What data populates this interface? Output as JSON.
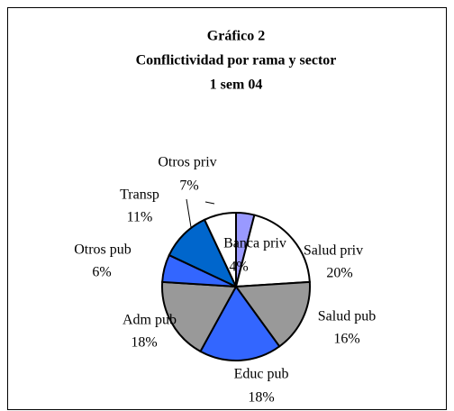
{
  "chart_data": {
    "type": "pie",
    "title": [
      "Gráfico 2",
      "Conflictividad por rama y sector",
      "1 sem 04"
    ],
    "categories": [
      "Banca priv",
      "Salud priv",
      "Salud pub",
      "Educ pub",
      "Adm pub",
      "Otros pub",
      "Transp",
      "Otros priv"
    ],
    "values": [
      4,
      20,
      16,
      18,
      18,
      6,
      11,
      7
    ],
    "value_labels": [
      "4%",
      "20%",
      "16%",
      "18%",
      "18%",
      "6%",
      "11%",
      "7%"
    ],
    "colors": [
      "#9999ff",
      "#ffffff",
      "#999999",
      "#3366ff",
      "#999999",
      "#3366ff",
      "#0066cc",
      "#ffffff"
    ]
  }
}
